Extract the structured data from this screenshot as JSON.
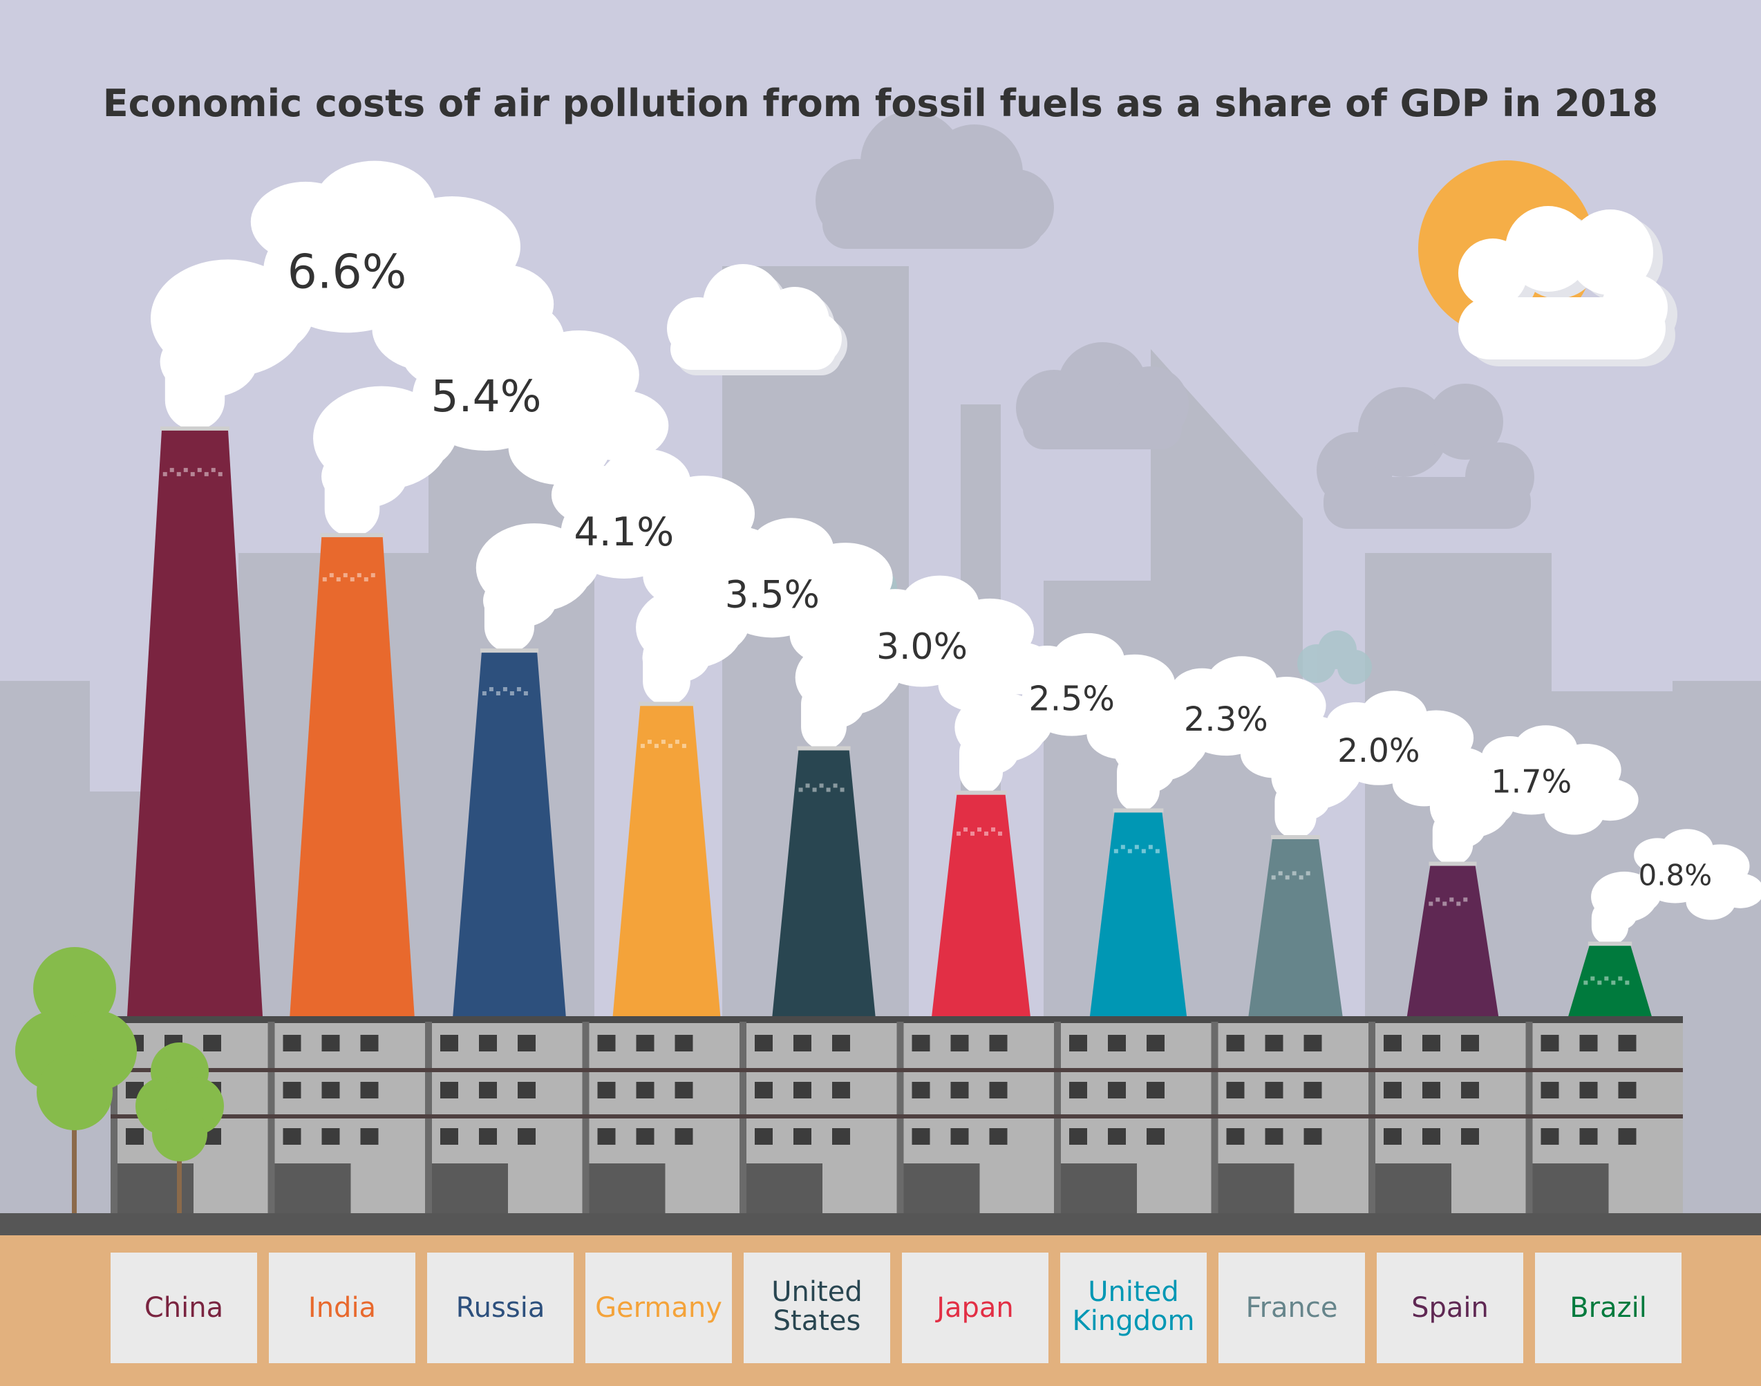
{
  "chart_data": {
    "type": "bar",
    "title": "Economic costs of air pollution from fossil fuels as a share of GDP in 2018",
    "unit": "%",
    "categories": [
      "China",
      "India",
      "Russia",
      "Germany",
      "United States",
      "Japan",
      "United Kingdom",
      "France",
      "Spain",
      "Brazil"
    ],
    "values": [
      6.6,
      5.4,
      4.1,
      3.5,
      3.0,
      2.5,
      2.3,
      2.0,
      1.7,
      0.8
    ],
    "value_labels": [
      "6.6%",
      "5.4%",
      "4.1%",
      "3.5%",
      "3.0%",
      "2.5%",
      "2.3%",
      "2.0%",
      "1.7%",
      "0.8%"
    ],
    "category_labels": [
      [
        "China"
      ],
      [
        "India"
      ],
      [
        "Russia"
      ],
      [
        "Germany"
      ],
      [
        "United",
        "States"
      ],
      [
        "Japan"
      ],
      [
        "United",
        "Kingdom"
      ],
      [
        "France"
      ],
      [
        "Spain"
      ],
      [
        "Brazil"
      ]
    ],
    "colors": [
      "#7a2440",
      "#e8692d",
      "#2d507d",
      "#f4a33a",
      "#294651",
      "#e22f45",
      "#0097b4",
      "#66858b",
      "#5f2853",
      "#007a3d"
    ],
    "grid": false,
    "legend": "none"
  }
}
